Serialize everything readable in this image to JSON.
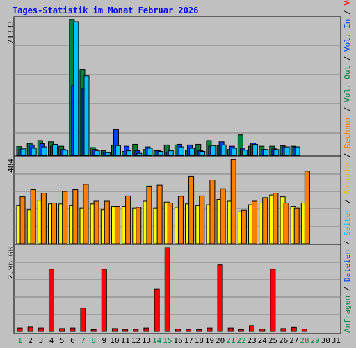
{
  "title": "Tages-Statistik im Monat Februar 2026",
  "colors": {
    "background": "#c0c0c0",
    "title": "#0000ff",
    "anfragen": "#008040",
    "dateien": "#0040ff",
    "seiten": "#00c0ff",
    "besuche": "#ffff00",
    "rechner": "#ff8000",
    "volumen": "#ff0000",
    "weekend_label": "#008040"
  },
  "right_legend": {
    "top": [
      {
        "text": "Anfragen",
        "color": "#008040"
      },
      {
        "text": " / ",
        "color": "#000000"
      },
      {
        "text": "Dateien",
        "color": "#0040ff"
      },
      {
        "text": " / ",
        "color": "#000000"
      },
      {
        "text": "Seiten",
        "color": "#00c0ff"
      },
      {
        "text": " / ",
        "color": "#000000"
      },
      {
        "text": "Besuche",
        "color": "#e0c000"
      },
      {
        "text": " / ",
        "color": "#000000"
      },
      {
        "text": "Rechner",
        "color": "#ff8000"
      },
      {
        "text": " / ",
        "color": "#000000"
      },
      {
        "text": "Vol. Out",
        "color": "#008040"
      },
      {
        "text": " / ",
        "color": "#000000"
      },
      {
        "text": "Vol. In",
        "color": "#0040ff"
      },
      {
        "text": " / ",
        "color": "#000000"
      },
      {
        "text": "Volumen",
        "color": "#ff0000"
      }
    ]
  },
  "chart_data": [
    {
      "type": "bar",
      "panel": "top",
      "ymax_label": "21333",
      "ymax": 21333,
      "categories": [
        "1",
        "2",
        "3",
        "4",
        "5",
        "6",
        "7",
        "8",
        "9",
        "10",
        "11",
        "12",
        "13",
        "14",
        "15",
        "16",
        "17",
        "18",
        "19",
        "20",
        "21",
        "22",
        "23",
        "24",
        "25",
        "26",
        "27",
        "28",
        "29",
        "30",
        "31"
      ],
      "weekend_days": [
        "1",
        "7",
        "8",
        "14",
        "15",
        "21",
        "22",
        "28",
        "29"
      ],
      "series": [
        {
          "name": "Anfragen",
          "values": [
            1350,
            1850,
            2300,
            2100,
            1400,
            21333,
            13500,
            1200,
            700,
            1600,
            600,
            1700,
            900,
            700,
            1600,
            1600,
            800,
            1700,
            2300,
            1500,
            900,
            3200,
            1400,
            1400,
            1400,
            1500,
            1400,
            null,
            null,
            null,
            null
          ]
        },
        {
          "name": "Dateien",
          "values": [
            900,
            1600,
            1800,
            1400,
            900,
            11000,
            10500,
            900,
            500,
            4000,
            1400,
            700,
            1300,
            700,
            500,
            1700,
            1600,
            700,
            1400,
            2100,
            1400,
            1000,
            1900,
            900,
            1000,
            1300,
            1300,
            null,
            null,
            null,
            null
          ]
        },
        {
          "name": "Seiten",
          "values": [
            1000,
            1100,
            1300,
            1700,
            800,
            21000,
            12500,
            700,
            400,
            1500,
            700,
            300,
            1100,
            600,
            700,
            1300,
            1100,
            600,
            1500,
            1600,
            1100,
            800,
            1700,
            900,
            900,
            1300,
            1300,
            null,
            null,
            null,
            null
          ]
        }
      ]
    },
    {
      "type": "bar",
      "panel": "middle",
      "ymax_label": "484",
      "ymax": 484,
      "categories": [
        "1",
        "2",
        "3",
        "4",
        "5",
        "6",
        "7",
        "8",
        "9",
        "10",
        "11",
        "12",
        "13",
        "14",
        "15",
        "16",
        "17",
        "18",
        "19",
        "20",
        "21",
        "22",
        "23",
        "24",
        "25",
        "26",
        "27",
        "28",
        "29",
        "30",
        "31"
      ],
      "series": [
        {
          "name": "Besuche",
          "values": [
            215,
            190,
            245,
            225,
            225,
            215,
            200,
            225,
            190,
            210,
            210,
            200,
            240,
            200,
            235,
            205,
            225,
            215,
            220,
            250,
            240,
            180,
            220,
            230,
            275,
            265,
            210,
            230,
            null,
            null,
            null
          ]
        },
        {
          "name": "Rechner",
          "values": [
            265,
            305,
            285,
            230,
            295,
            305,
            335,
            240,
            240,
            210,
            270,
            205,
            325,
            330,
            230,
            268,
            380,
            270,
            360,
            310,
            475,
            188,
            240,
            260,
            285,
            230,
            200,
            410,
            null,
            null,
            null
          ]
        }
      ]
    },
    {
      "type": "bar",
      "panel": "bottom",
      "ymax_label": "2.96 GB",
      "ymax": 2.96,
      "categories": [
        "1",
        "2",
        "3",
        "4",
        "5",
        "6",
        "7",
        "8",
        "9",
        "10",
        "11",
        "12",
        "13",
        "14",
        "15",
        "16",
        "17",
        "18",
        "19",
        "20",
        "21",
        "22",
        "23",
        "24",
        "25",
        "26",
        "27",
        "28",
        "29",
        "30",
        "31"
      ],
      "series": [
        {
          "name": "Volumen",
          "values": [
            0.12,
            0.15,
            0.12,
            2.2,
            0.1,
            0.12,
            0.82,
            0.06,
            2.2,
            0.1,
            0.07,
            0.07,
            0.12,
            1.5,
            2.96,
            0.08,
            0.07,
            0.06,
            0.12,
            2.35,
            0.12,
            0.06,
            0.2,
            0.08,
            2.2,
            0.1,
            0.14,
            0.08,
            null,
            null,
            null
          ]
        }
      ]
    }
  ]
}
